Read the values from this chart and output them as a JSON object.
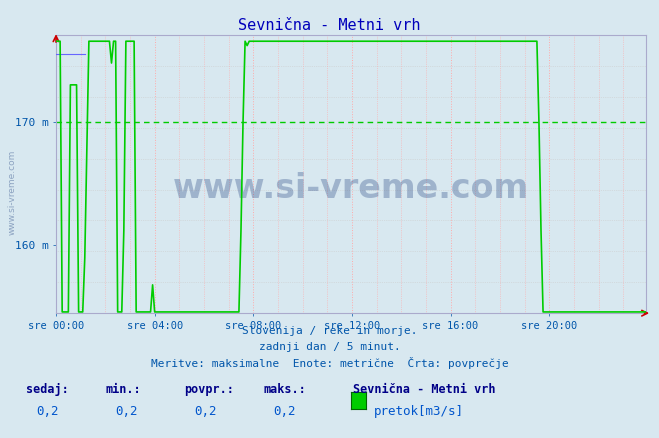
{
  "title": "Sevnična - Metni vrh",
  "title_color": "#0000bb",
  "bg_color": "#d8e8f0",
  "plot_bg_color": "#d8e8f0",
  "grid_color_v": "#ff9999",
  "grid_color_h": "#cccccc",
  "x_label_color": "#0055aa",
  "y_label_color": "#0055aa",
  "tick_color": "#0055aa",
  "line_color": "#00cc00",
  "line2_color": "#6666ff",
  "dashed_line_color": "#00cc00",
  "dashed_line_value": 170.0,
  "ymin": 154.5,
  "ymax": 177.0,
  "ytick_positions": [
    160,
    170
  ],
  "ytick_labels": [
    "160 m",
    "170 m"
  ],
  "xtick_labels": [
    "sre 00:00",
    "sre 04:00",
    "sre 08:00",
    "sre 12:00",
    "sre 16:00",
    "sre 20:00"
  ],
  "footer_line1": "Slovenija / reke in morje.",
  "footer_line2": "zadnji dan / 5 minut.",
  "footer_line3": "Meritve: maksimalne  Enote: metrične  Črta: povprečje",
  "footer_color": "#0055aa",
  "stat_labels": [
    "sedaj:",
    "min.:",
    "povpr.:",
    "maks.:"
  ],
  "stat_values": [
    "0,2",
    "0,2",
    "0,2",
    "0,2"
  ],
  "legend_station": "Sevnična - Metni vrh",
  "legend_unit": "pretok[m3/s]",
  "legend_color": "#00cc00",
  "watermark": "www.si-vreme.com",
  "watermark_color": "#1a3a7a",
  "watermark_alpha": 0.3,
  "arrow_color": "#cc0000"
}
